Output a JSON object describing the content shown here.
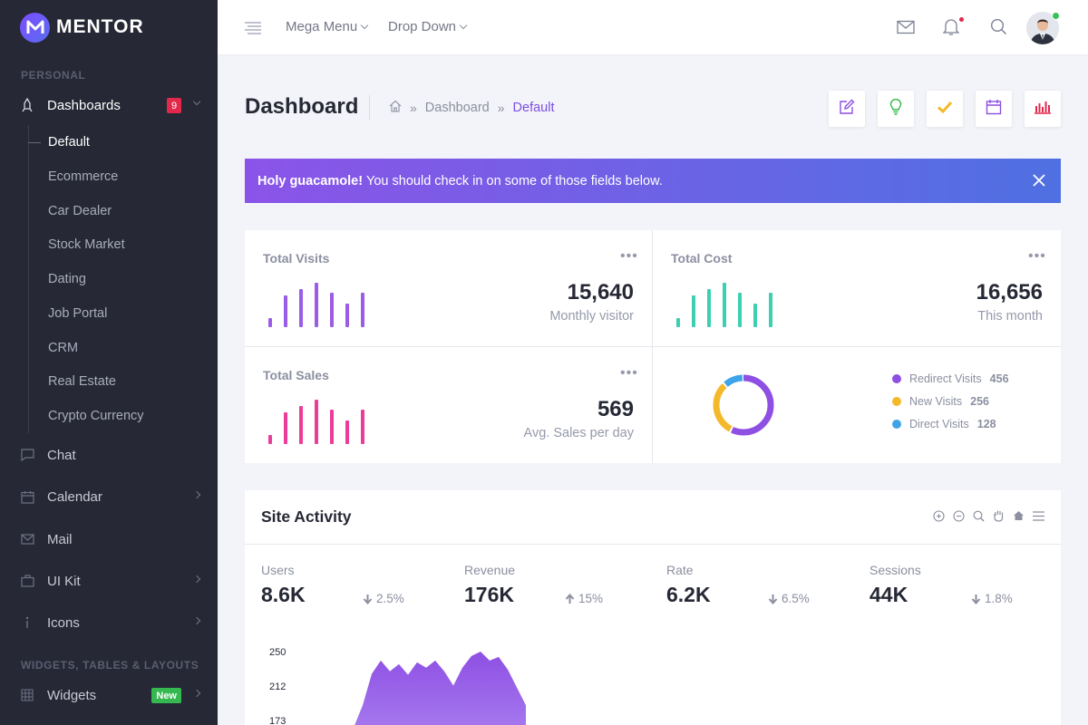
{
  "app": {
    "name": "MENTOR"
  },
  "sidebar": {
    "section_personal": "PERSONAL",
    "dashboards": {
      "label": "Dashboards",
      "badge": "9"
    },
    "sub_items": [
      "Default",
      "Ecommerce",
      "Car Dealer",
      "Stock Market",
      "Dating",
      "Job Portal",
      "CRM",
      "Real Estate",
      "Crypto Currency"
    ],
    "items": [
      {
        "label": "Chat"
      },
      {
        "label": "Calendar"
      },
      {
        "label": "Mail"
      },
      {
        "label": "UI Kit"
      },
      {
        "label": "Icons"
      }
    ],
    "section_widgets": "WIDGETS, TABLES & LAYOUTS",
    "widgets": {
      "label": "Widgets",
      "badge": "New"
    }
  },
  "topbar": {
    "mega_menu": "Mega Menu",
    "drop_down": "Drop Down"
  },
  "page": {
    "title": "Dashboard",
    "breadcrumb": [
      "Dashboard",
      "Default"
    ]
  },
  "alert": {
    "strong": "Holy guacamole!",
    "text": "You should check in on some of those fields below."
  },
  "stats": {
    "visits": {
      "label": "Total Visits",
      "value": "15,640",
      "sub": "Monthly visitor",
      "color": "#9b5de5",
      "bars": [
        0.3,
        1,
        1.2,
        1.4,
        1.1,
        0.75,
        1.1
      ]
    },
    "cost": {
      "label": "Total Cost",
      "value": "16,656",
      "sub": "This month",
      "color": "#3ccfb1",
      "bars": [
        0.3,
        1,
        1.2,
        1.4,
        1.1,
        0.75,
        1.1
      ]
    },
    "sales": {
      "label": "Total Sales",
      "value": "569",
      "sub": "Avg. Sales per day",
      "color": "#ec3c9a",
      "bars": [
        0.3,
        1,
        1.2,
        1.4,
        1.1,
        0.75,
        1.1
      ]
    },
    "donut": {
      "items": [
        {
          "label": "Redirect Visits",
          "value": "456",
          "color": "#8e4fe3"
        },
        {
          "label": "New Visits",
          "value": "256",
          "color": "#f4b92a"
        },
        {
          "label": "Direct Visits",
          "value": "128",
          "color": "#3ea3e9"
        }
      ]
    }
  },
  "activity": {
    "title": "Site Activity",
    "kpis": [
      {
        "label": "Users",
        "value": "8.6K",
        "delta": "2.5%",
        "dir": "down"
      },
      {
        "label": "Revenue",
        "value": "176K",
        "delta": "15%",
        "dir": "up"
      },
      {
        "label": "Rate",
        "value": "6.2K",
        "delta": "6.5%",
        "dir": "down"
      },
      {
        "label": "Sessions",
        "value": "44K",
        "delta": "1.8%",
        "dir": "down"
      }
    ],
    "y_ticks": [
      "250",
      "212",
      "173"
    ]
  },
  "chart_data": {
    "type": "area",
    "title": "",
    "ylim": [
      173,
      250
    ],
    "yticks": [
      250,
      212,
      173
    ],
    "series": [
      {
        "values": [
          165,
          190,
          225,
          240,
          228,
          236,
          224,
          238,
          232,
          240,
          228,
          212,
          232,
          245,
          250,
          240,
          244,
          230,
          210,
          190
        ]
      }
    ]
  }
}
